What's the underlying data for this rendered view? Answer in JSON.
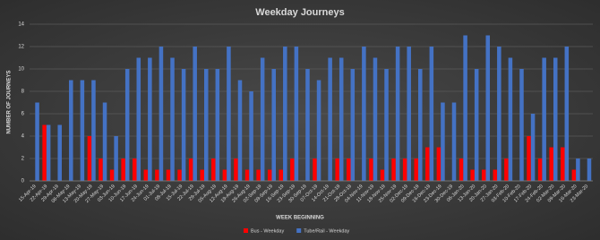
{
  "chart_data": {
    "type": "bar",
    "title": "Weekday Journeys",
    "x_label": "WEEK BEGINNING",
    "y_label": "NUMBER OF JOURNEYS",
    "categories": [
      "15-Apr-19",
      "22-Apr-19",
      "29-Apr-19",
      "06-May-19",
      "13-May-19",
      "20-May-19",
      "27-May-19",
      "03-Jun-19",
      "10-Jun-19",
      "17-Jun-19",
      "24-Jun-19",
      "01-Jul-19",
      "08-Jul-19",
      "15-Jul-19",
      "22-Jul-19",
      "29-Jul-19",
      "05-Aug-19",
      "12-Aug-19",
      "19-Aug-19",
      "26-Aug-19",
      "02-Sep-19",
      "09-Sep-19",
      "16-Sep-19",
      "23-Sep-19",
      "30-Sep-19",
      "07-Oct-19",
      "14-Oct-19",
      "21-Oct-19",
      "28-Oct-19",
      "04-Nov-19",
      "11-Nov-19",
      "18-Nov-19",
      "25-Nov-19",
      "02-Dec-19",
      "09-Dec-19",
      "16-Dec-19",
      "23-Dec-19",
      "30-Dec-19",
      "06-Jan-20",
      "13-Jan-20",
      "20-Jan-20",
      "27-Jan-20",
      "03-Feb-20",
      "10-Feb-20",
      "17-Feb-20",
      "24-Feb-20",
      "02-Mar-20",
      "09-Mar-20",
      "16-Mar-20",
      "23-Mar-20"
    ],
    "series": [
      {
        "name": "Bus - Weekday",
        "color": "#ff0000",
        "values": [
          0,
          5,
          0,
          0,
          0,
          4,
          2,
          1,
          2,
          2,
          1,
          1,
          1,
          1,
          2,
          1,
          2,
          1,
          2,
          1,
          1,
          1,
          1,
          2,
          0,
          2,
          0,
          2,
          2,
          0,
          2,
          1,
          2,
          2,
          2,
          3,
          3,
          0,
          2,
          1,
          1,
          1,
          2,
          0,
          4,
          2,
          3,
          3,
          1,
          0
        ]
      },
      {
        "name": "Tube/Rail - Weekday",
        "color": "#4472c4",
        "values": [
          7,
          5,
          5,
          9,
          9,
          9,
          7,
          4,
          10,
          11,
          11,
          12,
          11,
          10,
          12,
          10,
          10,
          12,
          9,
          8,
          11,
          10,
          12,
          12,
          10,
          9,
          11,
          11,
          10,
          12,
          11,
          10,
          12,
          12,
          10,
          12,
          7,
          7,
          13,
          10,
          13,
          12,
          11,
          10,
          6,
          11,
          11,
          12,
          2,
          2
        ]
      }
    ],
    "ylim": [
      0,
      14
    ],
    "yticks": [
      0,
      2,
      4,
      6,
      8,
      10,
      12,
      14
    ],
    "grid": true,
    "legend": "bottom"
  }
}
